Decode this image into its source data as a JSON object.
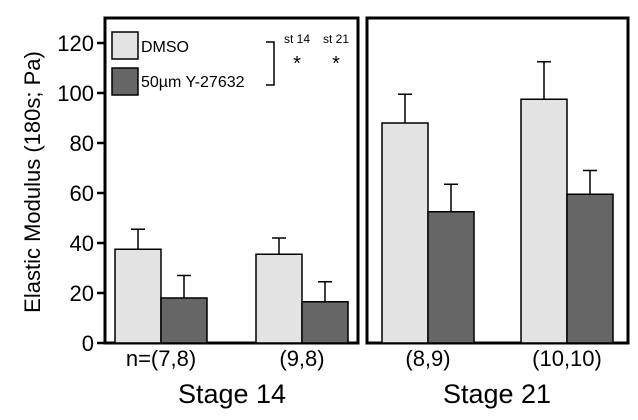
{
  "chart_data": {
    "type": "bar",
    "ylabel": "Elastic Modulus (180s; Pa)",
    "ylim": [
      0,
      130
    ],
    "yticks": [
      0,
      20,
      40,
      60,
      80,
      100,
      120
    ],
    "legend": {
      "position": "top-left",
      "entries": [
        {
          "name": "DMSO",
          "color": "#e3e3e3"
        },
        {
          "name": "50µm Y-27632",
          "color": "#666666"
        }
      ]
    },
    "significance": {
      "labels": [
        "st 14",
        "st 21"
      ],
      "marks": [
        "*",
        "*"
      ]
    },
    "panels": [
      {
        "stage": "Stage 14",
        "groups": [
          {
            "n_label": "n=(7,8)",
            "values": [
              37.5,
              18
            ],
            "errors": [
              8,
              9
            ]
          },
          {
            "n_label": "(9,8)",
            "values": [
              35.5,
              16.5
            ],
            "errors": [
              6.5,
              8
            ]
          }
        ]
      },
      {
        "stage": "Stage 21",
        "groups": [
          {
            "n_label": "(8,9)",
            "values": [
              88,
              52.5
            ],
            "errors": [
              11.5,
              11
            ]
          },
          {
            "n_label": "(10,10)",
            "values": [
              97.5,
              59.5
            ],
            "errors": [
              15,
              9.5
            ]
          }
        ]
      }
    ]
  }
}
